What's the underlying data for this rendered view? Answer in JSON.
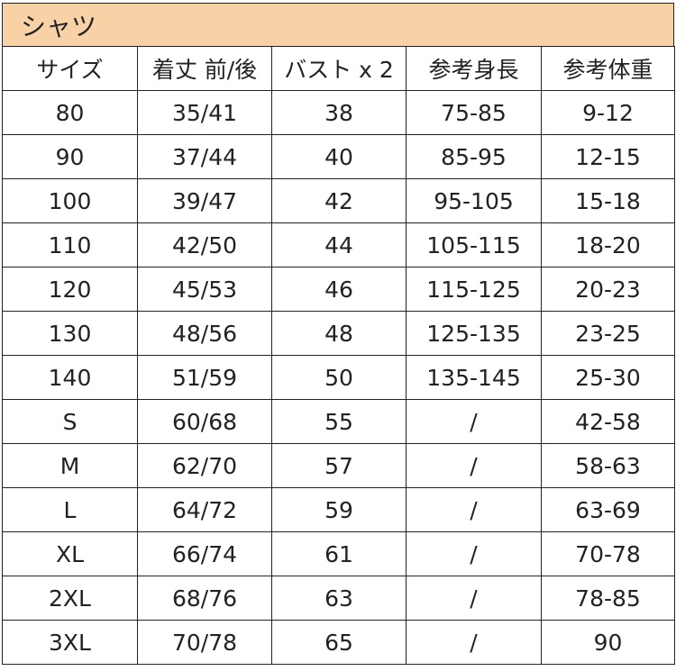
{
  "title": "シャツ",
  "headers": [
    "サイズ",
    "着丈 前/後",
    "バスト x 2",
    "参考身長",
    "参考体重"
  ],
  "rows": [
    [
      "80",
      "35/41",
      "38",
      "75-85",
      "9-12"
    ],
    [
      "90",
      "37/44",
      "40",
      "85-95",
      "12-15"
    ],
    [
      "100",
      "39/47",
      "42",
      "95-105",
      "15-18"
    ],
    [
      "110",
      "42/50",
      "44",
      "105-115",
      "18-20"
    ],
    [
      "120",
      "45/53",
      "46",
      "115-125",
      "20-23"
    ],
    [
      "130",
      "48/56",
      "48",
      "125-135",
      "23-25"
    ],
    [
      "140",
      "51/59",
      "50",
      "135-145",
      "25-30"
    ],
    [
      "S",
      "60/68",
      "55",
      "/",
      "42-58"
    ],
    [
      "M",
      "62/70",
      "57",
      "/",
      "58-63"
    ],
    [
      "L",
      "64/72",
      "59",
      "/",
      "63-69"
    ],
    [
      "XL",
      "66/74",
      "61",
      "/",
      "70-78"
    ],
    [
      "2XL",
      "68/76",
      "63",
      "/",
      "78-85"
    ],
    [
      "3XL",
      "70/78",
      "65",
      "/",
      "90"
    ]
  ],
  "colors": {
    "title_bg": "#F9D1A7",
    "border": "#222222"
  }
}
